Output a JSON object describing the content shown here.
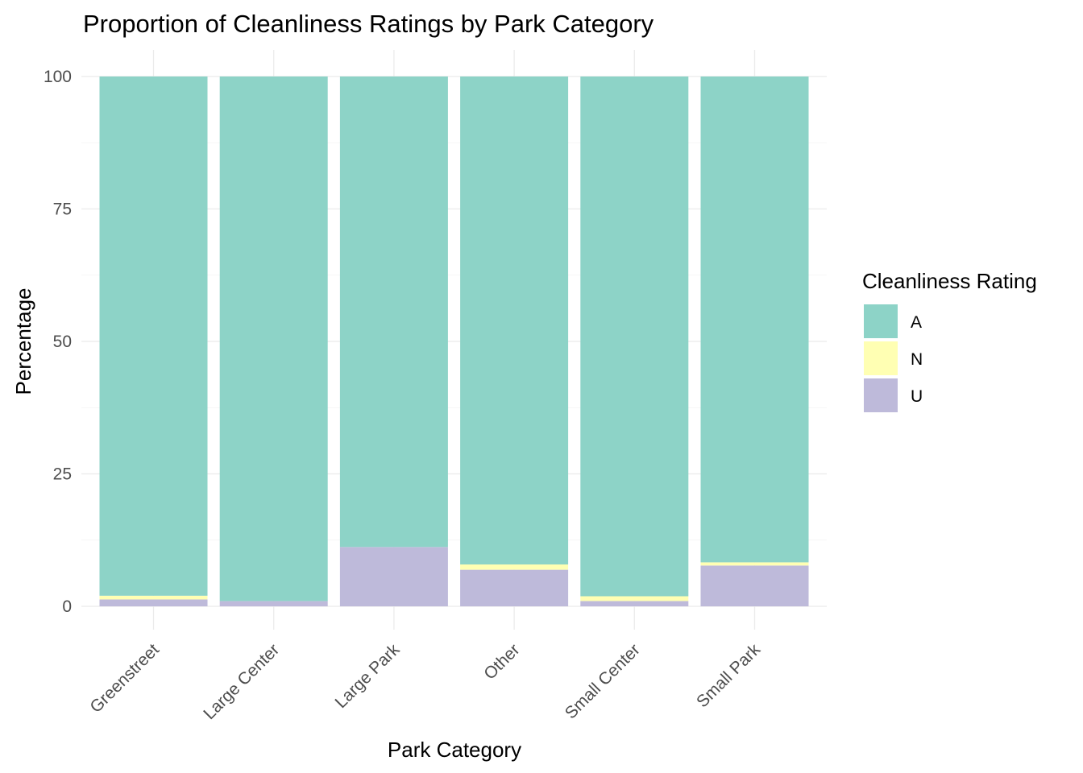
{
  "chart_data": {
    "type": "bar",
    "stacked": true,
    "title": "Proportion of Cleanliness Ratings by Park Category",
    "xlabel": "Park Category",
    "ylabel": "Percentage",
    "ylim": [
      0,
      100
    ],
    "yticks": [
      0,
      25,
      50,
      75,
      100
    ],
    "grid": true,
    "legend_position": "right",
    "legend_title": "Cleanliness Rating",
    "categories": [
      "Greenstreet",
      "Large Center",
      "Large Park",
      "Other",
      "Small Center",
      "Small Park"
    ],
    "series": [
      {
        "name": "U",
        "color": "#bebada",
        "values": [
          1.3,
          1.0,
          11.2,
          6.9,
          1.0,
          7.7
        ]
      },
      {
        "name": "N",
        "color": "#ffffb3",
        "values": [
          0.7,
          0.0,
          0.0,
          1.0,
          0.9,
          0.6
        ]
      },
      {
        "name": "A",
        "color": "#8dd3c7",
        "values": [
          98.0,
          99.0,
          88.8,
          92.1,
          98.1,
          91.7
        ]
      }
    ],
    "legend_order": [
      "A",
      "N",
      "U"
    ]
  }
}
